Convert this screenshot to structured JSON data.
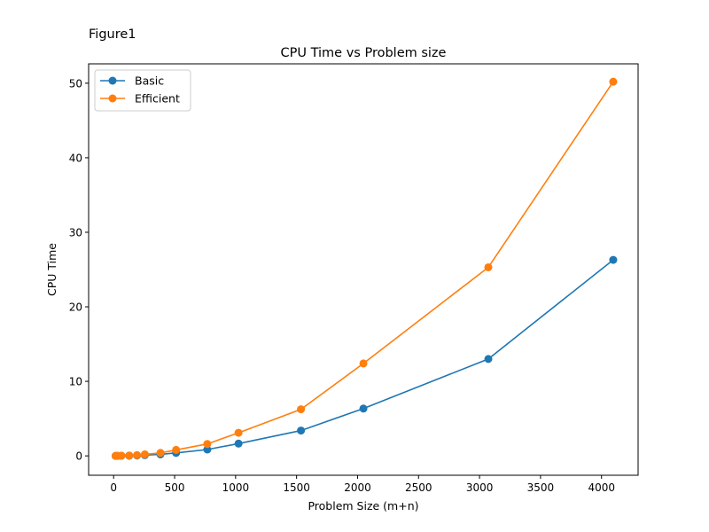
{
  "figure_label": "Figure1",
  "chart_data": {
    "type": "line",
    "title": "CPU Time vs Problem size",
    "xlabel": "Problem Size (m+n)",
    "ylabel": "CPU Time",
    "xlim": [
      -205,
      4300
    ],
    "ylim": [
      -2.6,
      52.6
    ],
    "xticks": [
      0,
      500,
      1000,
      1500,
      2000,
      2500,
      3000,
      3500,
      4000
    ],
    "yticks": [
      0,
      10,
      20,
      30,
      40,
      50
    ],
    "grid": false,
    "legend_position": "top-left",
    "series": [
      {
        "name": "Basic",
        "color": "#1f77b4",
        "marker": "circle",
        "x": [
          16,
          32,
          64,
          128,
          192,
          256,
          384,
          512,
          768,
          1024,
          1536,
          2048,
          3072,
          4096
        ],
        "y": [
          0.0,
          0.0,
          0.01,
          0.02,
          0.05,
          0.1,
          0.2,
          0.4,
          0.85,
          1.65,
          3.4,
          6.35,
          13.0,
          26.3
        ]
      },
      {
        "name": "Efficient",
        "color": "#ff7f0e",
        "marker": "circle",
        "x": [
          16,
          32,
          64,
          128,
          192,
          256,
          384,
          512,
          768,
          1024,
          1536,
          2048,
          3072,
          4096
        ],
        "y": [
          0.0,
          0.01,
          0.02,
          0.05,
          0.1,
          0.2,
          0.4,
          0.8,
          1.6,
          3.1,
          6.25,
          12.4,
          25.3,
          50.2
        ]
      }
    ]
  }
}
